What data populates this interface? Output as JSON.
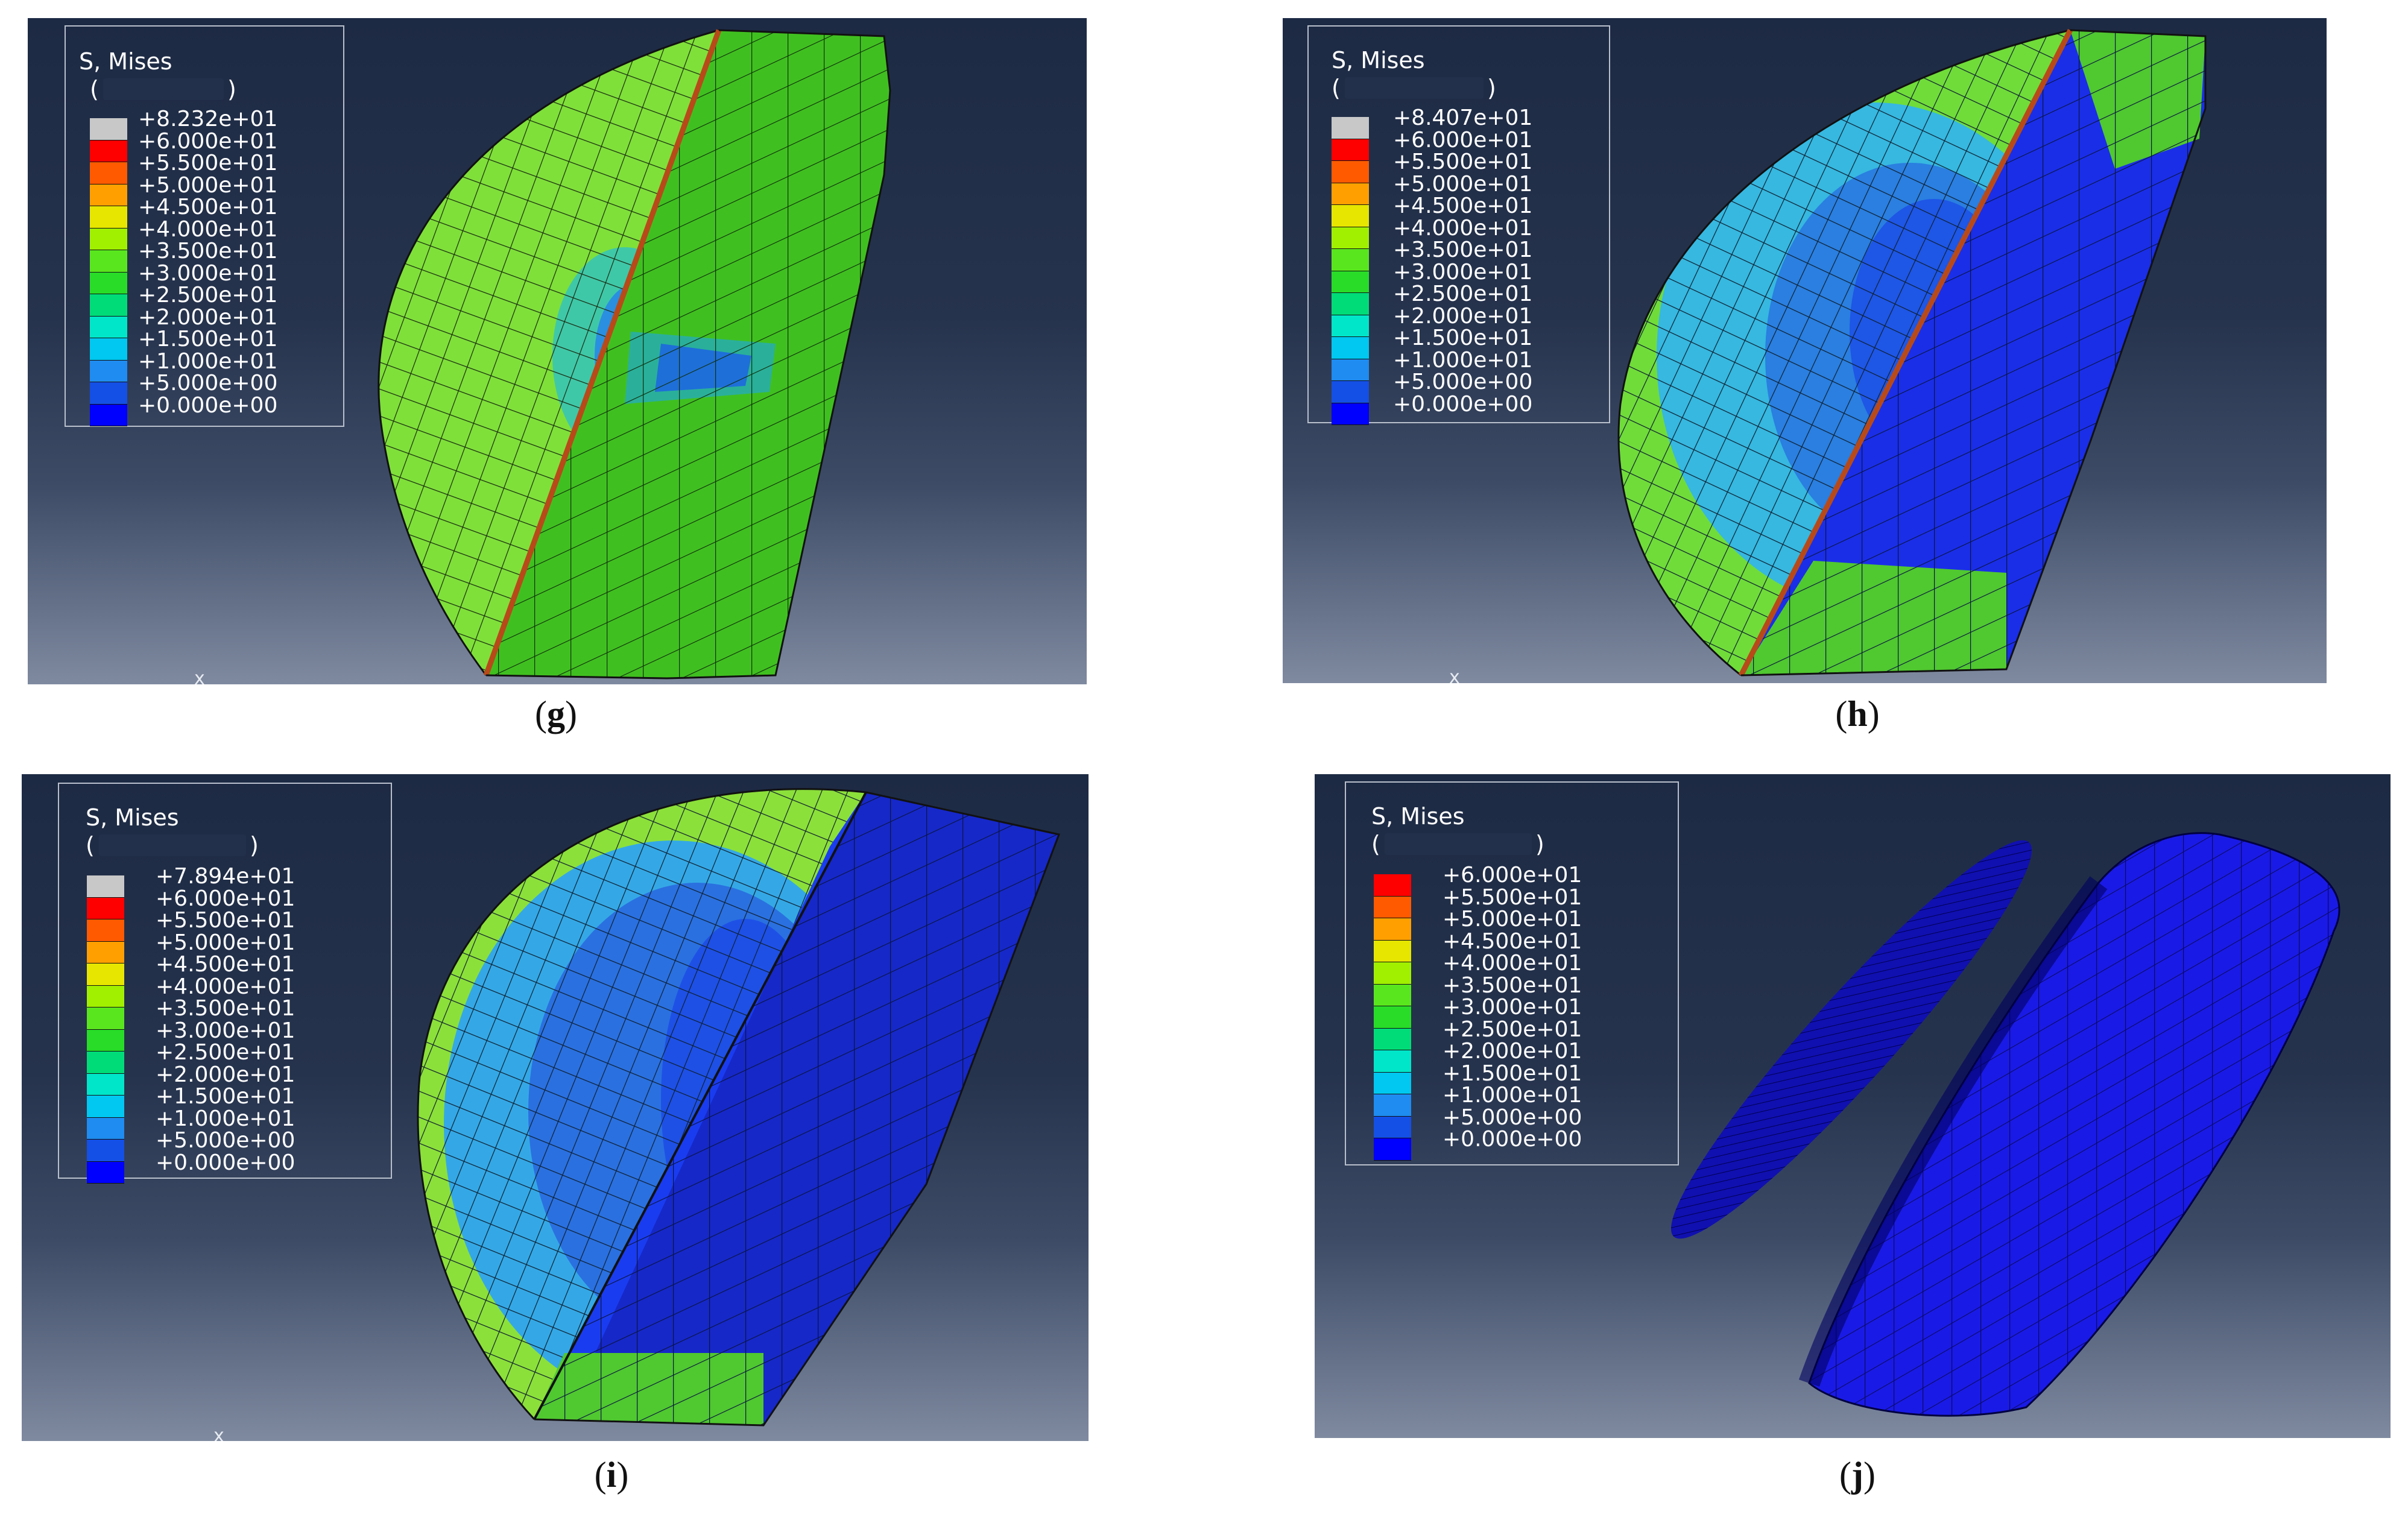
{
  "panels": [
    {
      "id": "g",
      "caption_open": "(",
      "caption_letter": "g",
      "caption_close": ")",
      "legend": {
        "title": "S, Mises",
        "unit_open": "(",
        "unit_close": ")",
        "entries": [
          "+8.232e+01",
          "+6.000e+01",
          "+5.500e+01",
          "+5.000e+01",
          "+4.500e+01",
          "+4.000e+01",
          "+3.500e+01",
          "+3.000e+01",
          "+2.500e+01",
          "+2.000e+01",
          "+1.500e+01",
          "+1.000e+01",
          "+5.000e+00",
          "+0.000e+00"
        ],
        "colors": [
          "#c8c8c8",
          "#ff0000",
          "#ff5a00",
          "#ffa000",
          "#e6e600",
          "#a0f000",
          "#5ae61e",
          "#28dc28",
          "#00dc78",
          "#00e6c8",
          "#00c8f0",
          "#1e8cf0",
          "#1450e6",
          "#0000ff"
        ]
      }
    },
    {
      "id": "h",
      "caption_open": "(",
      "caption_letter": "h",
      "caption_close": ")",
      "legend": {
        "title": "S, Mises",
        "unit_open": "(",
        "unit_close": ")",
        "entries": [
          "+8.407e+01",
          "+6.000e+01",
          "+5.500e+01",
          "+5.000e+01",
          "+4.500e+01",
          "+4.000e+01",
          "+3.500e+01",
          "+3.000e+01",
          "+2.500e+01",
          "+2.000e+01",
          "+1.500e+01",
          "+1.000e+01",
          "+5.000e+00",
          "+0.000e+00"
        ],
        "colors": [
          "#c8c8c8",
          "#ff0000",
          "#ff5a00",
          "#ffa000",
          "#e6e600",
          "#a0f000",
          "#5ae61e",
          "#28dc28",
          "#00dc78",
          "#00e6c8",
          "#00c8f0",
          "#1e8cf0",
          "#1450e6",
          "#0000ff"
        ]
      }
    },
    {
      "id": "i",
      "caption_open": "(",
      "caption_letter": "i",
      "caption_close": ")",
      "legend": {
        "title": "S, Mises",
        "unit_open": "(",
        "unit_close": ")",
        "entries": [
          "+7.894e+01",
          "+6.000e+01",
          "+5.500e+01",
          "+5.000e+01",
          "+4.500e+01",
          "+4.000e+01",
          "+3.500e+01",
          "+3.000e+01",
          "+2.500e+01",
          "+2.000e+01",
          "+1.500e+01",
          "+1.000e+01",
          "+5.000e+00",
          "+0.000e+00"
        ],
        "colors": [
          "#c8c8c8",
          "#ff0000",
          "#ff5a00",
          "#ffa000",
          "#e6e600",
          "#a0f000",
          "#5ae61e",
          "#28dc28",
          "#00dc78",
          "#00e6c8",
          "#00c8f0",
          "#1e8cf0",
          "#1450e6",
          "#0000ff"
        ]
      }
    },
    {
      "id": "j",
      "caption_open": "(",
      "caption_letter": "j",
      "caption_close": ")",
      "legend": {
        "title": "S, Mises",
        "unit_open": "(",
        "unit_close": ")",
        "entries": [
          "+6.000e+01",
          "+5.500e+01",
          "+5.000e+01",
          "+4.500e+01",
          "+4.000e+01",
          "+3.500e+01",
          "+3.000e+01",
          "+2.500e+01",
          "+2.000e+01",
          "+1.500e+01",
          "+1.000e+01",
          "+5.000e+00",
          "+0.000e+00"
        ],
        "colors": [
          "#ff0000",
          "#ff5a00",
          "#ffa000",
          "#e6e600",
          "#a0f000",
          "#5ae61e",
          "#28dc28",
          "#00dc78",
          "#00e6c8",
          "#00c8f0",
          "#1e8cf0",
          "#1450e6",
          "#0000ff"
        ]
      }
    }
  ],
  "axis_marker": "x"
}
